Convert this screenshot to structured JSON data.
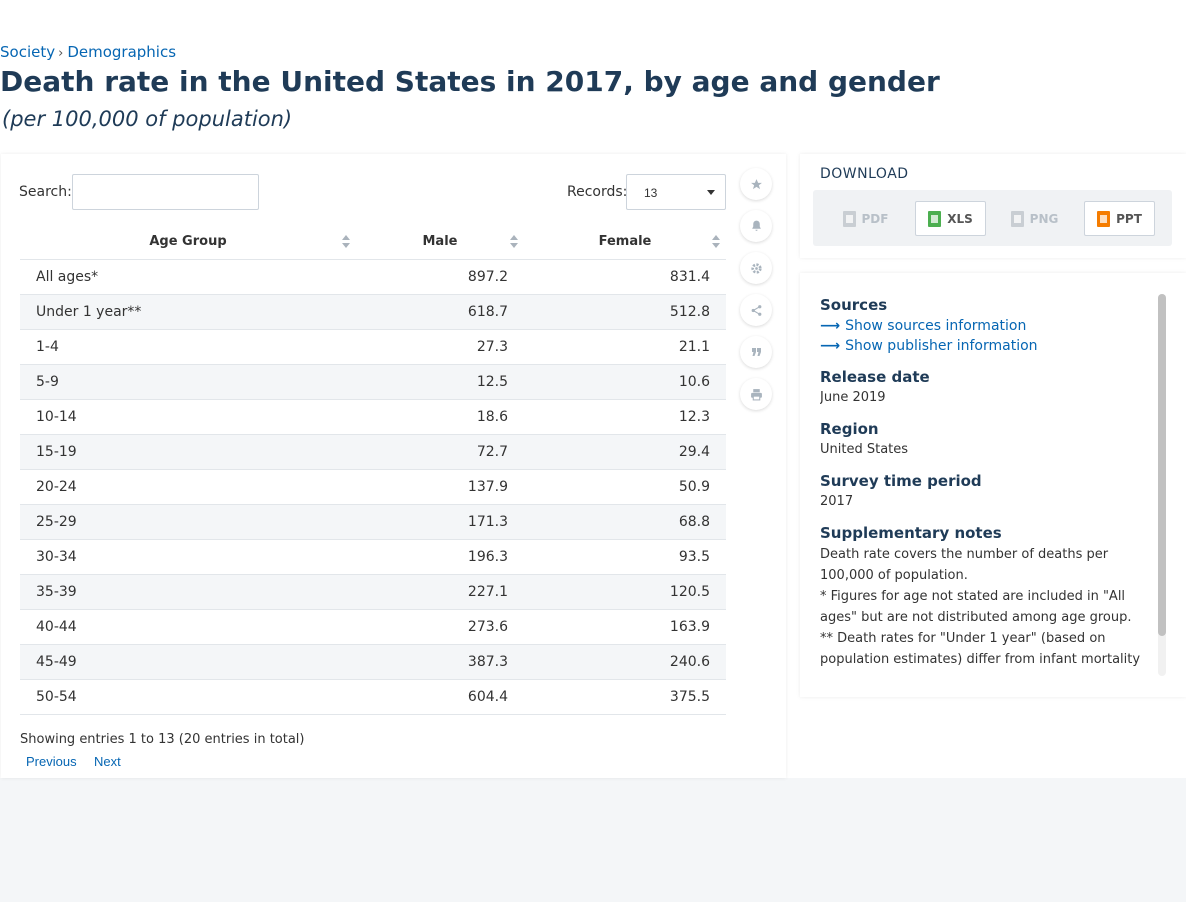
{
  "breadcrumb": {
    "items": [
      "Society",
      "Demographics"
    ],
    "separator": "›"
  },
  "title": "Death rate in the United States in 2017, by age and gender",
  "subtitle": "(per 100,000 of population)",
  "controls": {
    "search_label": "Search:",
    "search_value": "",
    "records_label": "Records:",
    "records_value": "13"
  },
  "table": {
    "columns": [
      "Age Group",
      "Male",
      "Female"
    ],
    "rows": [
      [
        "All ages*",
        "897.2",
        "831.4"
      ],
      [
        "Under 1 year**",
        "618.7",
        "512.8"
      ],
      [
        "1-4",
        "27.3",
        "21.1"
      ],
      [
        "5-9",
        "12.5",
        "10.6"
      ],
      [
        "10-14",
        "18.6",
        "12.3"
      ],
      [
        "15-19",
        "72.7",
        "29.4"
      ],
      [
        "20-24",
        "137.9",
        "50.9"
      ],
      [
        "25-29",
        "171.3",
        "68.8"
      ],
      [
        "30-34",
        "196.3",
        "93.5"
      ],
      [
        "35-39",
        "227.1",
        "120.5"
      ],
      [
        "40-44",
        "273.6",
        "163.9"
      ],
      [
        "45-49",
        "387.3",
        "240.6"
      ],
      [
        "50-54",
        "604.4",
        "375.5"
      ]
    ],
    "info": "Showing entries 1 to 13 (20 entries in total)",
    "prev_label": "Previous",
    "next_label": "Next"
  },
  "tools": [
    "star-icon",
    "bell-icon",
    "gear-icon",
    "share-icon",
    "quote-icon",
    "print-icon"
  ],
  "download": {
    "title": "DOWNLOAD",
    "buttons": [
      {
        "label": "PDF",
        "enabled": false,
        "color": "#c9ced3"
      },
      {
        "label": "XLS",
        "enabled": true,
        "color": "#4caf50"
      },
      {
        "label": "PNG",
        "enabled": false,
        "color": "#c9ced3"
      },
      {
        "label": "PPT",
        "enabled": true,
        "color": "#f57c00"
      }
    ]
  },
  "details": {
    "sources_heading": "Sources",
    "sources_link": "Show sources information",
    "publisher_link": "Show publisher information",
    "release_heading": "Release date",
    "release_value": "June 2019",
    "region_heading": "Region",
    "region_value": "United States",
    "survey_heading": "Survey time period",
    "survey_value": "2017",
    "notes_heading": "Supplementary notes",
    "notes_text": "Death rate covers the number of deaths per 100,000 of population.\n* Figures for age not stated are included in \"All ages\" but are not distributed among age group. ** Death rates for \"Under 1 year\" (based on population estimates) differ from infant mortality"
  },
  "colors": {
    "accent": "#0666b3",
    "heading": "#1f3b57"
  }
}
